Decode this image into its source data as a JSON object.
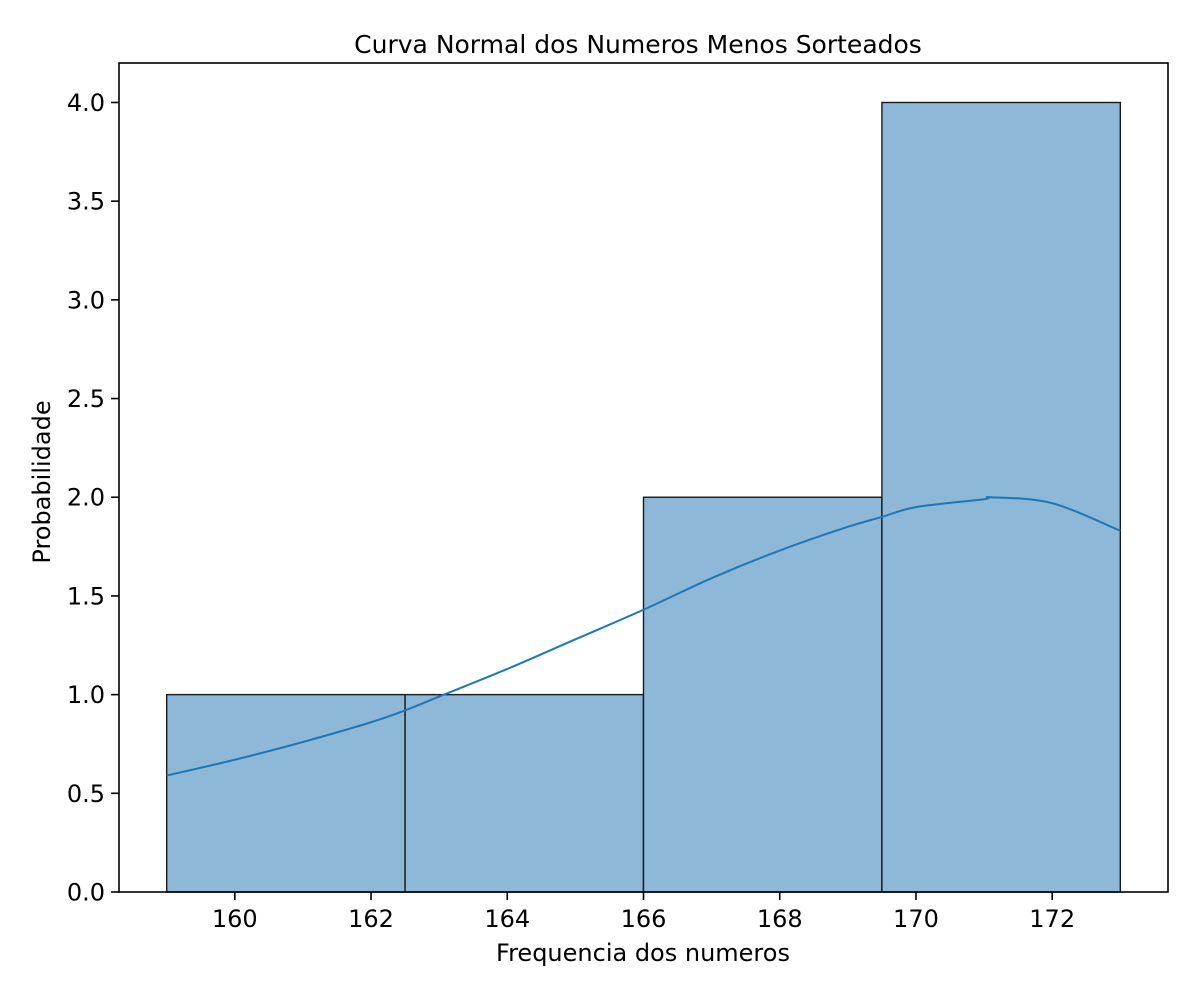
{
  "chart_data": {
    "type": "bar",
    "subtype": "histogram-with-kde",
    "title": "Curva Normal dos Numeros Menos Sorteados",
    "xlabel": "Frequencia dos numeros",
    "ylabel": "Probabilidade",
    "xlim": [
      158.3,
      173.7
    ],
    "ylim": [
      0,
      4.2
    ],
    "xticks": [
      160,
      162,
      164,
      166,
      168,
      170,
      172
    ],
    "xtick_labels": [
      "160",
      "162",
      "164",
      "166",
      "168",
      "170",
      "172"
    ],
    "yticks": [
      0,
      0.5,
      1,
      1.5,
      2,
      2.5,
      3,
      3.5,
      4
    ],
    "ytick_labels": [
      "0.0",
      "0.5",
      "1.0",
      "1.5",
      "2.0",
      "2.5",
      "3.0",
      "3.5",
      "4.0"
    ],
    "bins": [
      {
        "start": 159,
        "end": 162.5,
        "value": 1
      },
      {
        "start": 162.5,
        "end": 166,
        "value": 1
      },
      {
        "start": 166,
        "end": 169.5,
        "value": 2
      },
      {
        "start": 169.5,
        "end": 173,
        "value": 4
      }
    ],
    "kde": {
      "x": [
        159,
        160,
        161,
        162,
        162.5,
        163,
        164,
        165,
        166,
        167,
        168,
        169,
        169.5,
        170,
        171,
        171.1,
        172,
        173
      ],
      "y": [
        0.59,
        0.67,
        0.76,
        0.86,
        0.92,
        0.99,
        1.13,
        1.28,
        1.43,
        1.59,
        1.73,
        1.85,
        1.9,
        1.95,
        1.99,
        2.0,
        1.97,
        1.83
      ]
    },
    "grid": false,
    "colors": {
      "bar_fill": "#8db8d8",
      "bar_edge": "#1a1a1a",
      "kde_line": "#1f77b4",
      "axes": "#000000"
    }
  }
}
